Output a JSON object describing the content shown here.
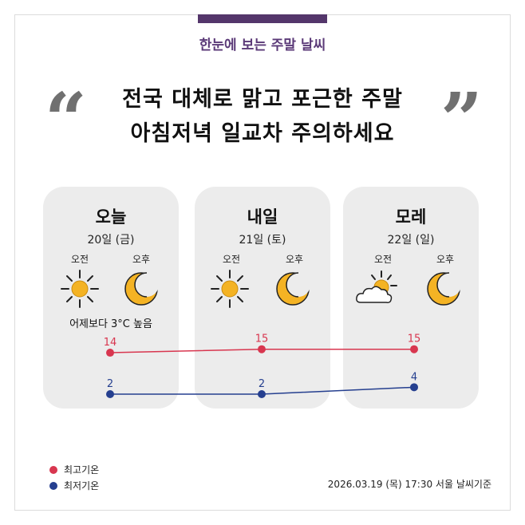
{
  "header": {
    "subtitle": "한눈에 보는 주말 날씨",
    "headline_line1": "전국 대체로 맑고 포근한 주말",
    "headline_line2": "아침저녁 일교차 주의하세요",
    "open_quote": "“",
    "close_quote": "”"
  },
  "days": [
    {
      "title": "오늘",
      "date": "20일 (금)",
      "am_label": "오전",
      "pm_label": "오후",
      "am_icon": "sun-icon",
      "pm_icon": "moon-icon",
      "note": "어제보다 3°C 높음"
    },
    {
      "title": "내일",
      "date": "21일 (토)",
      "am_label": "오전",
      "pm_label": "오후",
      "am_icon": "sun-icon",
      "pm_icon": "moon-icon",
      "note": ""
    },
    {
      "title": "모레",
      "date": "22일 (일)",
      "am_label": "오전",
      "pm_label": "오후",
      "am_icon": "sun-behind-cloud-icon",
      "pm_icon": "moon-icon",
      "note": ""
    }
  ],
  "chart_data": {
    "type": "line",
    "categories": [
      "20일 (금)",
      "21일 (토)",
      "22일 (일)"
    ],
    "series": [
      {
        "name": "최고기온",
        "values": [
          14,
          15,
          15
        ],
        "color": "#d8364f"
      },
      {
        "name": "최저기온",
        "values": [
          2,
          2,
          4
        ],
        "color": "#253f8f"
      }
    ]
  },
  "legend": [
    {
      "label": "최고기온",
      "color": "#d8364f"
    },
    {
      "label": "최저기온",
      "color": "#253f8f"
    }
  ],
  "footer": {
    "note": "2026.03.19 (목) 17:30 서울 날씨기준"
  },
  "colors": {
    "accent": "#54366b",
    "subtitle": "#5b3a78",
    "card": "#ececec",
    "icon": "#f4b324"
  }
}
